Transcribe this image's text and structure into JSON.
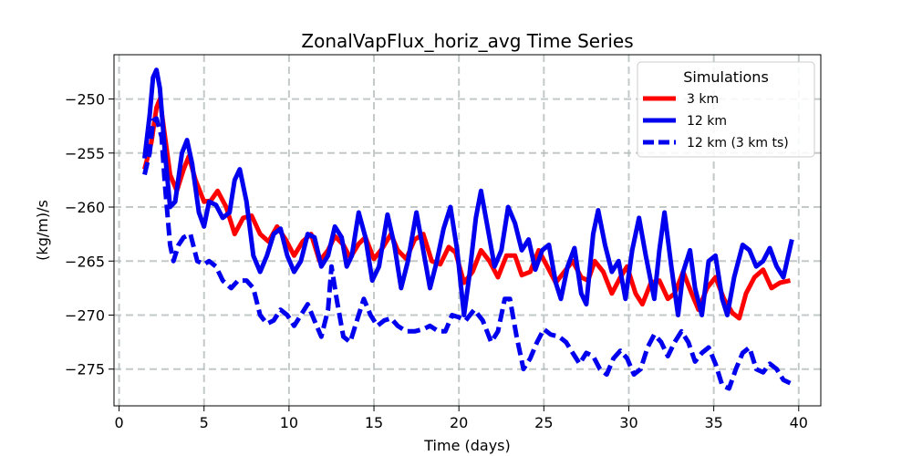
{
  "chart_data": {
    "type": "line",
    "title": "ZonalVapFlux_horiz_avg Time Series",
    "xlabel": "Time (days)",
    "ylabel": "(kg/m)/s",
    "xlim": [
      -0.3,
      41.3
    ],
    "ylim": [
      -278.4,
      -245.9
    ],
    "xticks": [
      0,
      5,
      10,
      15,
      20,
      25,
      30,
      35,
      40
    ],
    "xtick_labels": [
      "0",
      "5",
      "10",
      "15",
      "20",
      "25",
      "30",
      "35",
      "40"
    ],
    "yticks": [
      -250,
      -255,
      -260,
      -265,
      -270,
      -275
    ],
    "ytick_labels": [
      "−250",
      "−255",
      "−260",
      "−265",
      "−270",
      "−275"
    ],
    "grid": true,
    "legend": {
      "title": "Simulations",
      "position": "upper-right"
    },
    "series": [
      {
        "name": "3 km",
        "color": "#ff0000",
        "style": "solid",
        "points": [
          [
            1.5,
            -256.5
          ],
          [
            1.9,
            -254.0
          ],
          [
            2.2,
            -250.8
          ],
          [
            2.4,
            -250.0
          ],
          [
            2.7,
            -253.5
          ],
          [
            3.0,
            -257.0
          ],
          [
            3.4,
            -258.5
          ],
          [
            3.8,
            -256.5
          ],
          [
            4.1,
            -255.3
          ],
          [
            4.5,
            -257.5
          ],
          [
            5.0,
            -259.5
          ],
          [
            5.4,
            -259.4
          ],
          [
            5.8,
            -258.5
          ],
          [
            6.3,
            -260.0
          ],
          [
            6.8,
            -262.5
          ],
          [
            7.3,
            -261.0
          ],
          [
            7.8,
            -260.8
          ],
          [
            8.3,
            -262.5
          ],
          [
            8.8,
            -263.2
          ],
          [
            9.3,
            -261.8
          ],
          [
            9.8,
            -263.0
          ],
          [
            10.3,
            -264.5
          ],
          [
            10.8,
            -263.2
          ],
          [
            11.3,
            -262.5
          ],
          [
            11.8,
            -265.0
          ],
          [
            12.3,
            -264.0
          ],
          [
            12.7,
            -262.7
          ],
          [
            13.2,
            -263.5
          ],
          [
            13.6,
            -264.7
          ],
          [
            14.1,
            -263.4
          ],
          [
            14.5,
            -262.8
          ],
          [
            15.0,
            -264.8
          ],
          [
            15.5,
            -263.8
          ],
          [
            16.0,
            -262.5
          ],
          [
            16.4,
            -264.0
          ],
          [
            16.9,
            -264.8
          ],
          [
            17.4,
            -263.0
          ],
          [
            17.9,
            -262.5
          ],
          [
            18.4,
            -265.0
          ],
          [
            18.9,
            -265.3
          ],
          [
            19.4,
            -263.7
          ],
          [
            19.8,
            -264.2
          ],
          [
            20.3,
            -267.0
          ],
          [
            20.8,
            -266.0
          ],
          [
            21.3,
            -264.0
          ],
          [
            21.8,
            -265.0
          ],
          [
            22.3,
            -266.5
          ],
          [
            22.8,
            -264.5
          ],
          [
            23.3,
            -264.5
          ],
          [
            23.7,
            -266.3
          ],
          [
            24.2,
            -266.0
          ],
          [
            24.7,
            -264.0
          ],
          [
            25.2,
            -265.5
          ],
          [
            25.7,
            -267.0
          ],
          [
            26.2,
            -266.0
          ],
          [
            26.7,
            -265.0
          ],
          [
            27.2,
            -266.5
          ],
          [
            27.6,
            -266.8
          ],
          [
            28.0,
            -265.0
          ],
          [
            28.5,
            -266.0
          ],
          [
            29.0,
            -268.0
          ],
          [
            29.5,
            -266.5
          ],
          [
            29.9,
            -265.5
          ],
          [
            30.4,
            -268.0
          ],
          [
            30.8,
            -269.0
          ],
          [
            31.3,
            -267.0
          ],
          [
            31.8,
            -266.8
          ],
          [
            32.3,
            -268.5
          ],
          [
            32.7,
            -268.0
          ],
          [
            33.2,
            -266.0
          ],
          [
            33.7,
            -268.0
          ],
          [
            34.1,
            -269.5
          ],
          [
            34.6,
            -267.5
          ],
          [
            35.1,
            -266.5
          ],
          [
            35.6,
            -268.5
          ],
          [
            36.1,
            -269.8
          ],
          [
            36.5,
            -270.3
          ],
          [
            36.9,
            -268.0
          ],
          [
            37.4,
            -266.5
          ],
          [
            37.9,
            -265.8
          ],
          [
            38.4,
            -267.5
          ],
          [
            38.9,
            -267.0
          ],
          [
            39.5,
            -266.8
          ]
        ]
      },
      {
        "name": "12 km",
        "color": "#0000ee",
        "style": "solid",
        "points": [
          [
            1.5,
            -255.5
          ],
          [
            1.8,
            -251.5
          ],
          [
            2.0,
            -248.0
          ],
          [
            2.2,
            -247.3
          ],
          [
            2.4,
            -249.0
          ],
          [
            2.7,
            -255.0
          ],
          [
            3.0,
            -260.0
          ],
          [
            3.3,
            -259.5
          ],
          [
            3.7,
            -255.0
          ],
          [
            4.0,
            -253.8
          ],
          [
            4.3,
            -256.0
          ],
          [
            4.7,
            -260.5
          ],
          [
            5.0,
            -261.8
          ],
          [
            5.3,
            -259.5
          ],
          [
            5.7,
            -259.8
          ],
          [
            6.1,
            -261.0
          ],
          [
            6.5,
            -260.5
          ],
          [
            6.8,
            -257.5
          ],
          [
            7.1,
            -256.5
          ],
          [
            7.5,
            -259.5
          ],
          [
            7.9,
            -264.5
          ],
          [
            8.3,
            -266.0
          ],
          [
            8.7,
            -264.5
          ],
          [
            9.1,
            -262.5
          ],
          [
            9.5,
            -262.0
          ],
          [
            9.9,
            -264.5
          ],
          [
            10.3,
            -266.0
          ],
          [
            10.7,
            -265.0
          ],
          [
            11.1,
            -262.5
          ],
          [
            11.5,
            -262.8
          ],
          [
            11.9,
            -265.5
          ],
          [
            12.3,
            -264.5
          ],
          [
            12.7,
            -261.8
          ],
          [
            13.1,
            -262.8
          ],
          [
            13.4,
            -265.5
          ],
          [
            13.7,
            -264.5
          ],
          [
            14.1,
            -260.5
          ],
          [
            14.5,
            -262.8
          ],
          [
            14.9,
            -266.8
          ],
          [
            15.3,
            -265.5
          ],
          [
            15.8,
            -260.7
          ],
          [
            16.2,
            -263.5
          ],
          [
            16.6,
            -267.5
          ],
          [
            17.0,
            -265.0
          ],
          [
            17.5,
            -260.5
          ],
          [
            17.9,
            -264.0
          ],
          [
            18.3,
            -267.5
          ],
          [
            18.7,
            -265.0
          ],
          [
            19.1,
            -262.0
          ],
          [
            19.5,
            -260.0
          ],
          [
            19.9,
            -264.0
          ],
          [
            20.3,
            -270.0
          ],
          [
            20.6,
            -266.5
          ],
          [
            21.0,
            -261.0
          ],
          [
            21.3,
            -258.5
          ],
          [
            21.7,
            -262.0
          ],
          [
            22.1,
            -265.5
          ],
          [
            22.5,
            -264.0
          ],
          [
            22.9,
            -260.0
          ],
          [
            23.3,
            -261.5
          ],
          [
            23.7,
            -264.0
          ],
          [
            24.1,
            -263.0
          ],
          [
            24.5,
            -265.8
          ],
          [
            24.9,
            -264.0
          ],
          [
            25.3,
            -263.5
          ],
          [
            25.7,
            -267.0
          ],
          [
            26.0,
            -268.5
          ],
          [
            26.4,
            -265.5
          ],
          [
            26.8,
            -263.8
          ],
          [
            27.2,
            -268.0
          ],
          [
            27.5,
            -269.0
          ],
          [
            27.9,
            -262.5
          ],
          [
            28.2,
            -260.3
          ],
          [
            28.6,
            -263.5
          ],
          [
            29.0,
            -266.0
          ],
          [
            29.4,
            -265.0
          ],
          [
            29.8,
            -268.5
          ],
          [
            30.2,
            -264.0
          ],
          [
            30.6,
            -261.0
          ],
          [
            31.0,
            -264.5
          ],
          [
            31.5,
            -268.5
          ],
          [
            31.8,
            -264.0
          ],
          [
            32.1,
            -260.5
          ],
          [
            32.5,
            -265.5
          ],
          [
            32.9,
            -270.0
          ],
          [
            33.2,
            -266.0
          ],
          [
            33.6,
            -264.0
          ],
          [
            33.9,
            -267.5
          ],
          [
            34.3,
            -270.0
          ],
          [
            34.7,
            -265.0
          ],
          [
            35.1,
            -264.5
          ],
          [
            35.5,
            -268.5
          ],
          [
            35.8,
            -270.0
          ],
          [
            36.2,
            -266.5
          ],
          [
            36.7,
            -263.5
          ],
          [
            37.1,
            -264.0
          ],
          [
            37.5,
            -265.5
          ],
          [
            37.9,
            -265.0
          ],
          [
            38.3,
            -263.8
          ],
          [
            38.7,
            -265.5
          ],
          [
            39.1,
            -266.5
          ],
          [
            39.6,
            -263.0
          ]
        ]
      },
      {
        "name": "12 km (3 km ts)",
        "color": "#0000ee",
        "style": "dashed",
        "points": [
          [
            1.5,
            -257.0
          ],
          [
            1.8,
            -255.0
          ],
          [
            2.0,
            -252.0
          ],
          [
            2.2,
            -251.8
          ],
          [
            2.5,
            -253.5
          ],
          [
            2.7,
            -258.0
          ],
          [
            3.0,
            -263.5
          ],
          [
            3.2,
            -265.0
          ],
          [
            3.5,
            -263.5
          ],
          [
            3.8,
            -262.8
          ],
          [
            4.2,
            -262.5
          ],
          [
            4.6,
            -265.0
          ],
          [
            5.0,
            -265.3
          ],
          [
            5.3,
            -265.0
          ],
          [
            5.7,
            -265.5
          ],
          [
            6.1,
            -266.8
          ],
          [
            6.6,
            -267.5
          ],
          [
            7.0,
            -266.8
          ],
          [
            7.5,
            -266.8
          ],
          [
            7.9,
            -267.5
          ],
          [
            8.3,
            -270.0
          ],
          [
            8.7,
            -270.8
          ],
          [
            9.1,
            -270.5
          ],
          [
            9.5,
            -269.5
          ],
          [
            9.9,
            -270.0
          ],
          [
            10.3,
            -271.0
          ],
          [
            10.7,
            -270.0
          ],
          [
            11.1,
            -269.0
          ],
          [
            11.5,
            -270.5
          ],
          [
            11.9,
            -272.0
          ],
          [
            12.3,
            -269.5
          ],
          [
            12.5,
            -265.5
          ],
          [
            12.8,
            -268.5
          ],
          [
            13.2,
            -272.0
          ],
          [
            13.6,
            -272.5
          ],
          [
            14.0,
            -270.5
          ],
          [
            14.4,
            -268.5
          ],
          [
            14.8,
            -270.0
          ],
          [
            15.2,
            -271.0
          ],
          [
            15.6,
            -270.5
          ],
          [
            16.0,
            -270.3
          ],
          [
            16.4,
            -271.0
          ],
          [
            16.9,
            -271.5
          ],
          [
            17.4,
            -271.5
          ],
          [
            17.9,
            -271.3
          ],
          [
            18.3,
            -271.0
          ],
          [
            18.8,
            -271.5
          ],
          [
            19.2,
            -271.5
          ],
          [
            19.6,
            -270.0
          ],
          [
            20.0,
            -270.2
          ],
          [
            20.4,
            -270.5
          ],
          [
            20.9,
            -269.5
          ],
          [
            21.4,
            -270.5
          ],
          [
            21.9,
            -272.5
          ],
          [
            22.3,
            -271.5
          ],
          [
            22.7,
            -268.5
          ],
          [
            23.0,
            -268.5
          ],
          [
            23.4,
            -272.0
          ],
          [
            23.8,
            -275.0
          ],
          [
            24.2,
            -274.0
          ],
          [
            24.6,
            -272.5
          ],
          [
            25.0,
            -271.3
          ],
          [
            25.4,
            -271.8
          ],
          [
            25.9,
            -272.0
          ],
          [
            26.3,
            -272.5
          ],
          [
            26.7,
            -273.5
          ],
          [
            27.1,
            -274.5
          ],
          [
            27.5,
            -273.5
          ],
          [
            27.9,
            -273.8
          ],
          [
            28.3,
            -275.0
          ],
          [
            28.7,
            -275.5
          ],
          [
            29.1,
            -274.0
          ],
          [
            29.5,
            -273.3
          ],
          [
            29.9,
            -274.0
          ],
          [
            30.3,
            -275.5
          ],
          [
            30.7,
            -275.0
          ],
          [
            31.1,
            -273.0
          ],
          [
            31.5,
            -271.8
          ],
          [
            31.9,
            -272.5
          ],
          [
            32.3,
            -273.8
          ],
          [
            32.7,
            -272.5
          ],
          [
            33.1,
            -271.5
          ],
          [
            33.5,
            -272.5
          ],
          [
            33.9,
            -274.3
          ],
          [
            34.3,
            -273.5
          ],
          [
            34.7,
            -273.0
          ],
          [
            35.1,
            -274.5
          ],
          [
            35.5,
            -276.5
          ],
          [
            35.9,
            -276.8
          ],
          [
            36.3,
            -275.0
          ],
          [
            36.7,
            -273.5
          ],
          [
            37.1,
            -273.0
          ],
          [
            37.5,
            -275.0
          ],
          [
            37.9,
            -275.3
          ],
          [
            38.3,
            -274.5
          ],
          [
            38.7,
            -275.0
          ],
          [
            39.1,
            -276.0
          ],
          [
            39.5,
            -276.3
          ]
        ]
      }
    ]
  }
}
